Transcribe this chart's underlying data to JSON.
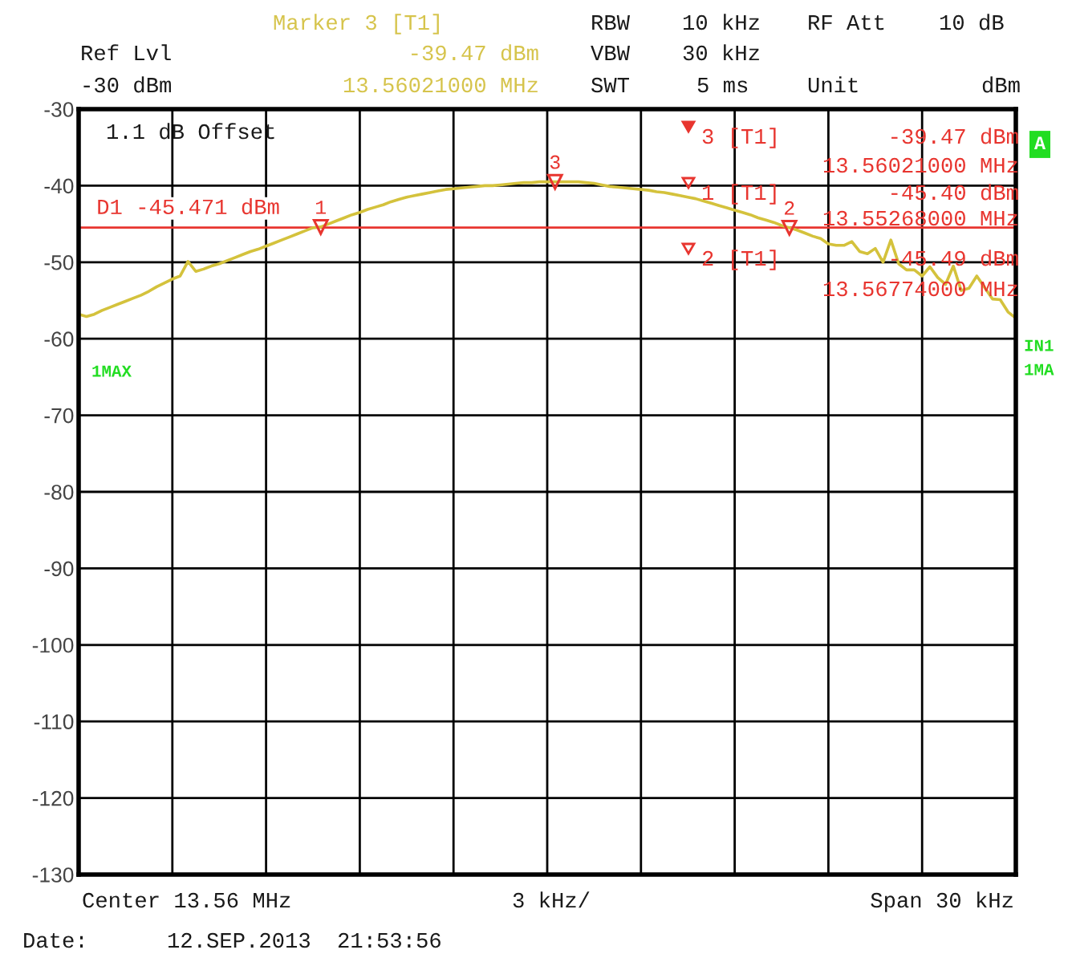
{
  "chart_data": {
    "type": "line",
    "categories": [
      null,
      null,
      null,
      null,
      null,
      null,
      null,
      null,
      null,
      null,
      null,
      null,
      null,
      null,
      null,
      null,
      null,
      null,
      null,
      null,
      null,
      null,
      null,
      null,
      null,
      null,
      null,
      null,
      null,
      null,
      null,
      null,
      null,
      null,
      null,
      null,
      null,
      null,
      null,
      null,
      null,
      null,
      null,
      null,
      null,
      null,
      null,
      null,
      null,
      null,
      null,
      null,
      null,
      null,
      null,
      null,
      null,
      null,
      null,
      null,
      null,
      null,
      null,
      null,
      null,
      null,
      null,
      null,
      null,
      null,
      null,
      null,
      null,
      null,
      null,
      null,
      null,
      null,
      null,
      null,
      null,
      null,
      null,
      null,
      null,
      null,
      null,
      null,
      null,
      null,
      null,
      null,
      null,
      null,
      null,
      null,
      null,
      null,
      null,
      null,
      null,
      null,
      null,
      null,
      null,
      null,
      null,
      null,
      null,
      null,
      null,
      null,
      null,
      null,
      null,
      null,
      null,
      null,
      null,
      null,
      null
    ],
    "series": [
      {
        "color": "#d4c23c",
        "values": [
          -56.8,
          -57.1,
          -56.8,
          -56.3,
          -55.9,
          -55.5,
          -55.1,
          -54.7,
          -54.3,
          -53.8,
          -53.2,
          -52.7,
          -52.2,
          -51.8,
          -49.9,
          -51.2,
          -50.9,
          -50.5,
          -50.2,
          -49.8,
          -49.4,
          -49.0,
          -48.6,
          -48.3,
          -47.9,
          -47.5,
          -47.1,
          -46.7,
          -46.3,
          -45.9,
          -45.5,
          -45.4,
          -45.0,
          -44.6,
          -44.2,
          -43.8,
          -43.5,
          -43.1,
          -42.8,
          -42.5,
          -42.1,
          -41.8,
          -41.5,
          -41.3,
          -41.1,
          -40.9,
          -40.7,
          -40.5,
          -40.4,
          -40.3,
          -40.2,
          -40.1,
          -40.0,
          -40.0,
          -39.9,
          -39.8,
          -39.7,
          -39.6,
          -39.6,
          -39.5,
          -39.5,
          -39.5,
          -39.5,
          -39.5,
          -39.5,
          -39.6,
          -39.7,
          -39.9,
          -40.1,
          -40.2,
          -40.3,
          -40.4,
          -40.5,
          -40.6,
          -40.8,
          -40.9,
          -41.1,
          -41.3,
          -41.5,
          -41.7,
          -42.0,
          -42.3,
          -42.6,
          -42.9,
          -43.2,
          -43.5,
          -43.8,
          -44.2,
          -44.5,
          -44.8,
          -45.2,
          -45.5,
          -45.8,
          -46.2,
          -46.6,
          -46.9,
          -47.6,
          -47.8,
          -47.8,
          -47.3,
          -48.6,
          -48.9,
          -48.2,
          -50.0,
          -47.1,
          -50.2,
          -51.0,
          -51.0,
          -51.8,
          -50.6,
          -52.0,
          -52.9,
          -50.5,
          -53.7,
          -53.4,
          -51.8,
          -53.3,
          -54.8,
          -54.9,
          -56.5,
          -57.3
        ]
      },
      {
        "type": "scatter",
        "name": "1",
        "color": "#e8352f",
        "marker": "triangle",
        "values": [
          null,
          null,
          null,
          null,
          null,
          null,
          null,
          null,
          null,
          null,
          null,
          null,
          null,
          null,
          null,
          null,
          null,
          null,
          null,
          null,
          null,
          null,
          null,
          null,
          null,
          null,
          null,
          null,
          null,
          null,
          null,
          -45.4,
          null,
          null,
          null,
          null,
          null,
          null,
          null,
          null,
          null,
          null,
          null,
          null,
          null,
          null,
          null,
          null,
          null,
          null,
          null,
          null,
          null,
          null,
          null,
          null,
          null,
          null,
          null,
          null,
          null,
          null,
          null,
          null,
          null,
          null,
          null,
          null,
          null,
          null,
          null,
          null,
          null,
          null,
          null,
          null,
          null,
          null,
          null,
          null,
          null,
          null,
          null,
          null,
          null,
          null,
          null,
          null,
          null,
          null,
          null,
          null,
          null,
          null,
          null,
          null,
          null,
          null,
          null,
          null,
          null,
          null,
          null,
          null,
          null,
          null,
          null,
          null,
          null,
          null,
          null,
          null,
          null,
          null,
          null,
          null,
          null,
          null,
          null,
          null,
          null
        ]
      },
      {
        "type": "scatter",
        "name": "2",
        "color": "#e8352f",
        "marker": "triangle",
        "values": [
          null,
          null,
          null,
          null,
          null,
          null,
          null,
          null,
          null,
          null,
          null,
          null,
          null,
          null,
          null,
          null,
          null,
          null,
          null,
          null,
          null,
          null,
          null,
          null,
          null,
          null,
          null,
          null,
          null,
          null,
          null,
          null,
          null,
          null,
          null,
          null,
          null,
          null,
          null,
          null,
          null,
          null,
          null,
          null,
          null,
          null,
          null,
          null,
          null,
          null,
          null,
          null,
          null,
          null,
          null,
          null,
          null,
          null,
          null,
          null,
          null,
          null,
          null,
          null,
          null,
          null,
          null,
          null,
          null,
          null,
          null,
          null,
          null,
          null,
          null,
          null,
          null,
          null,
          null,
          null,
          null,
          null,
          null,
          null,
          null,
          null,
          null,
          null,
          null,
          null,
          null,
          -45.5,
          null,
          null,
          null,
          null,
          null,
          null,
          null,
          null,
          null,
          null,
          null,
          null,
          null,
          null,
          null,
          null,
          null,
          null,
          null,
          null,
          null,
          null,
          null,
          null,
          null,
          null,
          null,
          null,
          null
        ]
      },
      {
        "type": "scatter",
        "name": "3",
        "color": "#e8352f",
        "marker": "triangle",
        "values": [
          null,
          null,
          null,
          null,
          null,
          null,
          null,
          null,
          null,
          null,
          null,
          null,
          null,
          null,
          null,
          null,
          null,
          null,
          null,
          null,
          null,
          null,
          null,
          null,
          null,
          null,
          null,
          null,
          null,
          null,
          null,
          null,
          null,
          null,
          null,
          null,
          null,
          null,
          null,
          null,
          null,
          null,
          null,
          null,
          null,
          null,
          null,
          null,
          null,
          null,
          null,
          null,
          null,
          null,
          null,
          null,
          null,
          null,
          null,
          null,
          null,
          -39.5,
          null,
          null,
          null,
          null,
          null,
          null,
          null,
          null,
          null,
          null,
          null,
          null,
          null,
          null,
          null,
          null,
          null,
          null,
          null,
          null,
          null,
          null,
          null,
          null,
          null,
          null,
          null,
          null,
          null,
          null,
          null,
          null,
          null,
          null,
          null,
          null,
          null,
          null,
          null,
          null,
          null,
          null,
          null,
          null,
          null,
          null,
          null,
          null,
          null,
          null,
          null,
          null,
          null,
          null,
          null,
          null,
          null,
          null,
          null
        ]
      }
    ],
    "ylim": [
      -130,
      -30
    ],
    "yticks": [
      -30,
      -40,
      -50,
      -60,
      -70,
      -80,
      -90,
      -100,
      -110,
      -120,
      -130
    ],
    "tick_labels": "y",
    "grid": true,
    "ref_lines": [
      {
        "axis": "y",
        "value": -45.471,
        "label": "D1 -45.471 dBm",
        "color": "#e8352f"
      }
    ],
    "annotations": [
      "Marker 3 [T1]",
      "Ref Lvl",
      "-39.47 dBm",
      "-30 dBm",
      "13.56021000 MHz",
      "RBW",
      "10 kHz",
      "VBW",
      "30 kHz",
      "SWT",
      "5 ms",
      "RF Att",
      "10 dB",
      "Unit",
      "dBm",
      "1.1 dB Offset",
      "1MAX",
      "A",
      "IN1",
      "1MA",
      "3 [T1]",
      "-39.47 dBm",
      "13.56021000 MHz",
      "1 [T1]",
      "-45.40 dBm",
      "13.55268000 MHz",
      "2 [T1]",
      "-45.49 dBm",
      "13.56774000 MHz",
      "Center 13.56 MHz",
      "3 kHz/",
      "Span 30 kHz",
      "Date:",
      "12.SEP.2013",
      "21:53:56"
    ]
  }
}
